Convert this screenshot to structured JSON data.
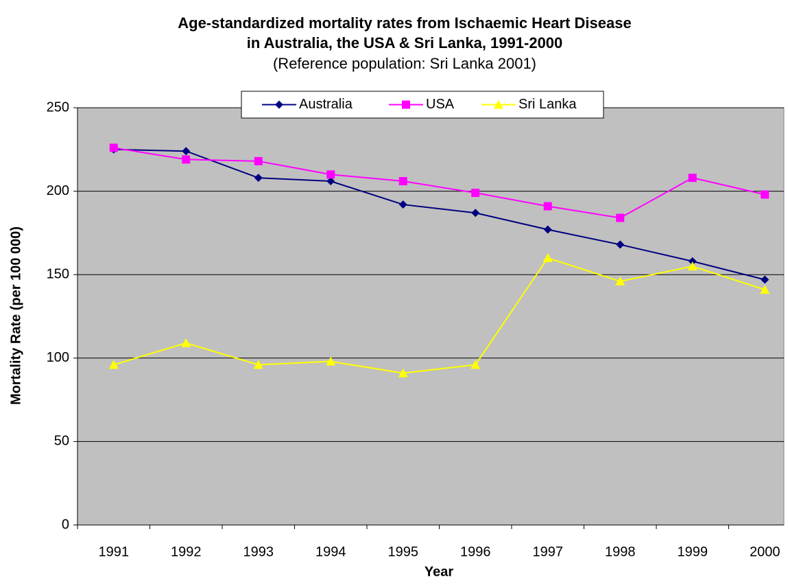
{
  "chart_data": {
    "type": "line",
    "title": [
      "Age-standardized mortality rates from Ischaemic Heart Disease",
      "in Australia, the USA & Sri Lanka, 1991-2000"
    ],
    "subtitle": "(Reference population: Sri Lanka 2001)",
    "x_label": "Year",
    "y_label": "Mortality Rate (per 100 000)",
    "categories": [
      "1991",
      "1992",
      "1993",
      "1994",
      "1995",
      "1996",
      "1997",
      "1998",
      "1999",
      "2000"
    ],
    "series": [
      {
        "name": "Australia",
        "color": "#000080",
        "marker": "diamond",
        "values": [
          225,
          224,
          208,
          206,
          192,
          187,
          177,
          168,
          158,
          147
        ]
      },
      {
        "name": "USA",
        "color": "#ff00ff",
        "marker": "square",
        "values": [
          226,
          219,
          218,
          210,
          206,
          199,
          191,
          184,
          208,
          198
        ]
      },
      {
        "name": "Sri Lanka",
        "color": "#ffff00",
        "marker": "triangle",
        "values": [
          96,
          109,
          96,
          98,
          91,
          96,
          160,
          146,
          155,
          141
        ]
      }
    ],
    "ylim": [
      0,
      250
    ],
    "yticks": [
      0,
      50,
      100,
      150,
      200,
      250
    ],
    "grid": true,
    "legend": "top"
  }
}
